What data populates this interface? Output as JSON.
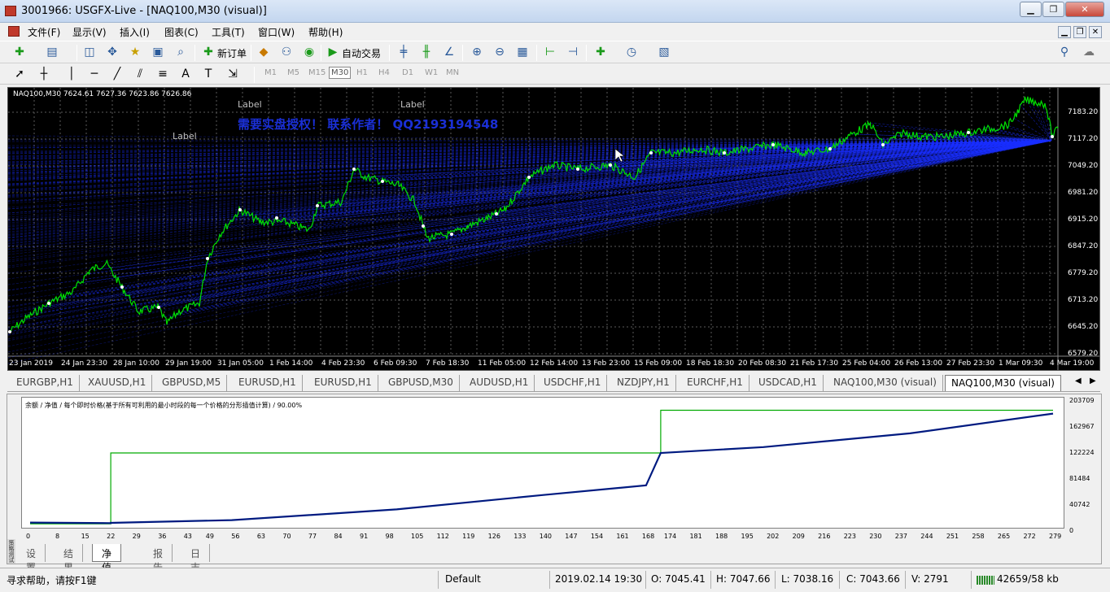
{
  "window": {
    "title": "3001966: USGFX-Live - [NAQ100,M30 (visual)]",
    "buttons": [
      "▁",
      "❐",
      "✕"
    ]
  },
  "mdi_buttons": [
    "▁",
    "❐",
    "✕"
  ],
  "menu": [
    "文件(F)",
    "显示(V)",
    "插入(I)",
    "图表(C)",
    "工具(T)",
    "窗口(W)",
    "帮助(H)"
  ],
  "toolbar": {
    "new_order": "新订单",
    "auto_trading": "自动交易"
  },
  "timeframes": [
    "M1",
    "M5",
    "M15",
    "M30",
    "H1",
    "H4",
    "D1",
    "W1",
    "MN"
  ],
  "active_timeframe": "M30",
  "colors": {
    "chart_bg": "#000000",
    "price_line": "#00e000",
    "fan_lines": "#1a2fff",
    "promo_text": "#1a2fd6",
    "equity": "#001a80",
    "balance": "#00aa00",
    "grid": "#5a5a5a"
  },
  "chart": {
    "symbol_info": "NAQ100,M30  7624.61 7627.36 7623.86 7626.86",
    "labels": [
      "Label",
      "Label",
      "Label"
    ],
    "promo": "需要实盘授权！ 联系作者！ QQ2193194548",
    "price_axis": [
      "7183.20",
      "7117.20",
      "7049.20",
      "6981.20",
      "6915.20",
      "6847.20",
      "6779.20",
      "6713.20",
      "6645.20",
      "6579.20"
    ],
    "time_axis": [
      "23 Jan 2019",
      "24 Jan 23:30",
      "28 Jan 10:00",
      "29 Jan 19:00",
      "31 Jan 05:00",
      "1 Feb 14:00",
      "4 Feb 23:30",
      "6 Feb 09:30",
      "7 Feb 18:30",
      "11 Feb 05:00",
      "12 Feb 14:00",
      "13 Feb 23:00",
      "15 Feb 09:00",
      "18 Feb 18:30",
      "20 Feb 08:30",
      "21 Feb 17:30",
      "25 Feb 04:00",
      "26 Feb 13:00",
      "27 Feb 23:30",
      "1 Mar 09:30",
      "4 Mar 19:00"
    ]
  },
  "symbol_tabs": [
    "EURGBP,H1",
    "XAUUSD,H1",
    "GBPUSD,M5",
    "EURUSD,H1",
    "EURUSD,H1",
    "GBPUSD,M30",
    "AUDUSD,H1",
    "USDCHF,H1",
    "NZDJPY,H1",
    "EURCHF,H1",
    "USDCAD,H1",
    "NAQ100,M30 (visual)",
    "NAQ100,M30 (visual)"
  ],
  "active_symbol_tab": 12,
  "tester": {
    "legend": "余额 / 净值 / 每个即时价格(基于所有可利用的最小时段的每一个价格的分形插值计算) / 90.00%",
    "y_axis": [
      "203709",
      "162967",
      "122224",
      "81484",
      "40742",
      "0"
    ],
    "x_axis": [
      "0",
      "8",
      "15",
      "22",
      "29",
      "36",
      "43",
      "49",
      "56",
      "63",
      "70",
      "77",
      "84",
      "91",
      "98",
      "105",
      "112",
      "119",
      "126",
      "133",
      "140",
      "147",
      "154",
      "161",
      "168",
      "174",
      "181",
      "188",
      "195",
      "202",
      "209",
      "216",
      "223",
      "230",
      "237",
      "244",
      "251",
      "258",
      "265",
      "272",
      "279"
    ],
    "tabs": [
      "设置",
      "结果",
      "净值图",
      "报告",
      "日志"
    ],
    "active_tab": 2,
    "side_label": "策略测试"
  },
  "chart_data": {
    "type": "line",
    "title": "",
    "xlabel": "",
    "ylabel": "",
    "x": [
      0,
      22,
      22,
      55,
      100,
      140,
      168,
      172,
      172,
      200,
      240,
      279
    ],
    "series": [
      {
        "name": "余额",
        "values": [
          4000,
          4000,
          122224,
          122224,
          122224,
          122224,
          122224,
          122224,
          193500,
          193500,
          193500,
          193500
        ]
      },
      {
        "name": "净值",
        "values": [
          6000,
          5000,
          5500,
          10000,
          28000,
          52000,
          68000,
          122224,
          122224,
          132000,
          155000,
          188000
        ]
      }
    ],
    "ylim": [
      0,
      203709
    ],
    "xlim": [
      0,
      281
    ],
    "grid": false,
    "legend": "top-left"
  },
  "status": {
    "help": "寻求帮助，请按F1键",
    "profile": "Default",
    "datetime": "2019.02.14 19:30",
    "open": "O: 7045.41",
    "high": "H: 7047.66",
    "low": "L: 7038.16",
    "close": "C: 7043.66",
    "volume": "V: 2791",
    "traffic": "42659/58 kb"
  }
}
